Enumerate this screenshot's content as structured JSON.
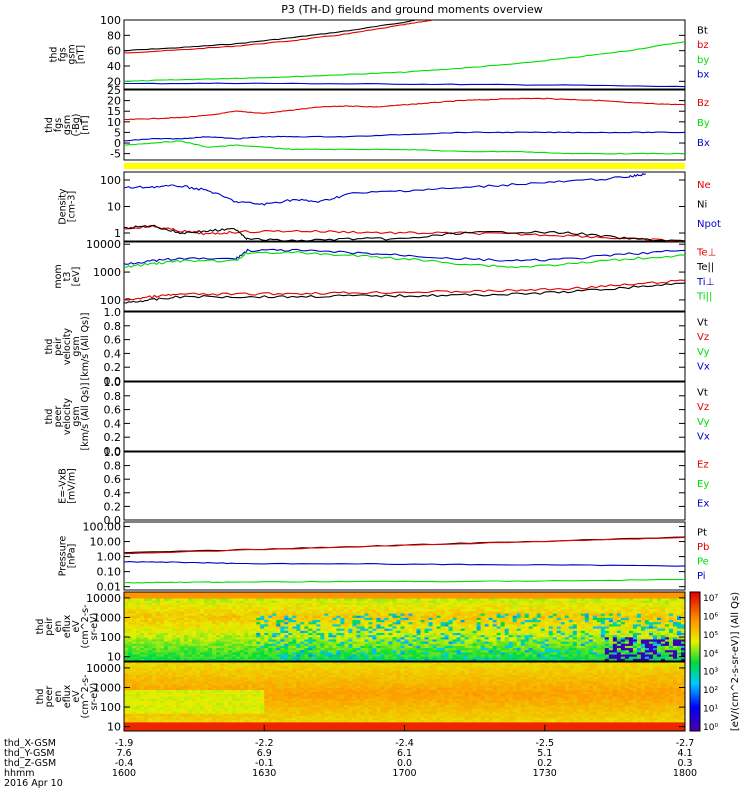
{
  "title": "P3 (TH-D) fields and ground moments overview",
  "colors": {
    "black": "#000000",
    "red": "#e00000",
    "green": "#00dd00",
    "blue": "#0000cc",
    "yellow": "#ffff00"
  },
  "chart_data": [
    {
      "type": "line",
      "ylabel": [
        "thd",
        "fgs",
        "gsm",
        "[nT]"
      ],
      "ylim": [
        10,
        100
      ],
      "ytick_labels": [
        "100",
        "80",
        "60",
        "40",
        "20"
      ],
      "ytick_values": [
        100,
        80,
        60,
        40,
        20
      ],
      "legend": [
        "Bt",
        "bz",
        "by",
        "bx"
      ],
      "legend_colors": [
        "#000000",
        "#e00000",
        "#00dd00",
        "#0000cc"
      ],
      "series": [
        {
          "name": "Bt",
          "color": "#000000",
          "x": [
            0,
            0.1,
            0.2,
            0.3,
            0.4,
            0.5,
            0.52
          ],
          "y": [
            60,
            64,
            69,
            77,
            86,
            97,
            100
          ]
        },
        {
          "name": "bz",
          "color": "#e00000",
          "x": [
            0,
            0.1,
            0.2,
            0.3,
            0.4,
            0.5,
            0.55
          ],
          "y": [
            57,
            61,
            66,
            73,
            82,
            94,
            100
          ]
        },
        {
          "name": "by",
          "color": "#00dd00",
          "x": [
            0,
            0.1,
            0.2,
            0.3,
            0.4,
            0.5,
            0.6,
            0.7,
            0.8,
            0.9,
            1
          ],
          "y": [
            20,
            22,
            24,
            26,
            29,
            32,
            37,
            43,
            51,
            60,
            72
          ]
        },
        {
          "name": "bx",
          "color": "#0000cc",
          "x": [
            0,
            0.2,
            0.4,
            0.6,
            0.8,
            1
          ],
          "y": [
            17,
            17.5,
            16.8,
            16,
            15,
            13
          ]
        }
      ]
    },
    {
      "type": "line",
      "ylabel": [
        "thd",
        "fgs",
        "gsm",
        "(-Bg)",
        "[nT]"
      ],
      "ylim": [
        -8,
        25
      ],
      "ytick_labels": [
        "25",
        "20",
        "15",
        "10",
        "5",
        "0",
        "-5"
      ],
      "ytick_values": [
        25,
        20,
        15,
        10,
        5,
        0,
        -5
      ],
      "legend": [
        "Bz",
        "By",
        "Bx"
      ],
      "legend_colors": [
        "#e00000",
        "#00dd00",
        "#0000cc"
      ],
      "series": [
        {
          "name": "Bz",
          "color": "#e00000",
          "x": [
            0,
            0.05,
            0.1,
            0.15,
            0.2,
            0.25,
            0.3,
            0.35,
            0.4,
            0.45,
            0.5,
            0.55,
            0.6,
            0.65,
            0.7,
            0.75,
            0.8,
            0.85,
            0.9,
            0.95,
            1
          ],
          "y": [
            11,
            11.5,
            12,
            13,
            15,
            14,
            15.5,
            17,
            17.5,
            17,
            18,
            19,
            20,
            20.5,
            21,
            21,
            20.5,
            20,
            19,
            18.5,
            18
          ]
        },
        {
          "name": "By",
          "color": "#00dd00",
          "x": [
            0,
            0.05,
            0.1,
            0.15,
            0.2,
            0.25,
            0.3,
            0.4,
            0.5,
            0.6,
            0.7,
            0.8,
            0.9,
            1
          ],
          "y": [
            -1,
            0,
            1,
            -2,
            -1,
            -2,
            -3,
            -3,
            -3,
            -4,
            -4,
            -5,
            -5,
            -5
          ]
        },
        {
          "name": "Bx",
          "color": "#0000cc",
          "x": [
            0,
            0.05,
            0.1,
            0.15,
            0.2,
            0.25,
            0.3,
            0.4,
            0.5,
            0.6,
            0.7,
            0.8,
            0.9,
            1
          ],
          "y": [
            1,
            2,
            2,
            3,
            2,
            3,
            3,
            3,
            4,
            5,
            5,
            5,
            5,
            5
          ]
        }
      ]
    },
    {
      "type": "line",
      "ylabel": [
        "Density",
        "[cm-3]"
      ],
      "ylim": [
        0.5,
        200
      ],
      "log": true,
      "ytick_labels": [
        "100",
        "10",
        "1"
      ],
      "ytick_values": [
        100,
        10,
        1
      ],
      "legend": [
        "Ne",
        "Ni",
        "Npot"
      ],
      "legend_colors": [
        "#e00000",
        "#000000",
        "#0000cc"
      ],
      "series": [
        {
          "name": "Ne",
          "color": "#e00000",
          "x": [
            0,
            0.05,
            0.1,
            0.15,
            0.2,
            0.3,
            0.4,
            0.5,
            0.6,
            0.7,
            0.8,
            0.9,
            1
          ],
          "y": [
            1.5,
            1.8,
            1.2,
            0.9,
            1.1,
            1.2,
            1.1,
            1.0,
            1.0,
            0.9,
            0.8,
            0.6,
            0.5
          ]
        },
        {
          "name": "Ni",
          "color": "#000000",
          "x": [
            0,
            0.05,
            0.1,
            0.15,
            0.2,
            0.22,
            0.3,
            0.4,
            0.5,
            0.6,
            0.7,
            0.8,
            0.9,
            1
          ],
          "y": [
            1.5,
            1.9,
            1.0,
            1.2,
            1.4,
            0.6,
            0.5,
            0.6,
            0.6,
            1.0,
            1.1,
            1.0,
            0.6,
            0.5
          ]
        },
        {
          "name": "Npot",
          "color": "#0000cc",
          "x": [
            0,
            0.05,
            0.1,
            0.15,
            0.2,
            0.25,
            0.3,
            0.35,
            0.4,
            0.5,
            0.6,
            0.7,
            0.8,
            0.9,
            0.93
          ],
          "y": [
            50,
            55,
            60,
            40,
            15,
            12,
            18,
            15,
            30,
            40,
            50,
            70,
            90,
            130,
            170
          ]
        }
      ]
    },
    {
      "type": "line",
      "ylabel": [
        "mom",
        "t3",
        "[eV]"
      ],
      "ylim": [
        40,
        12000
      ],
      "log": true,
      "ytick_labels": [
        "10000",
        "1000",
        "100"
      ],
      "ytick_values": [
        10000,
        1000,
        100
      ],
      "legend": [
        "Te⊥",
        "Te||",
        "Ti⊥",
        "Ti||"
      ],
      "legend_colors": [
        "#e00000",
        "#000000",
        "#0000cc",
        "#00dd00"
      ],
      "series": [
        {
          "name": "Te⊥",
          "color": "#e00000",
          "x": [
            0,
            0.05,
            0.1,
            0.2,
            0.3,
            0.4,
            0.5,
            0.6,
            0.7,
            0.8,
            0.9,
            1
          ],
          "y": [
            100,
            130,
            160,
            160,
            170,
            180,
            190,
            200,
            220,
            260,
            350,
            500
          ]
        },
        {
          "name": "Te||",
          "color": "#000000",
          "x": [
            0,
            0.05,
            0.1,
            0.2,
            0.3,
            0.4,
            0.5,
            0.6,
            0.7,
            0.8,
            0.9,
            1
          ],
          "y": [
            80,
            100,
            130,
            130,
            130,
            140,
            140,
            150,
            160,
            200,
            280,
            400
          ]
        },
        {
          "name": "Ti⊥",
          "color": "#0000cc",
          "x": [
            0,
            0.05,
            0.1,
            0.2,
            0.22,
            0.3,
            0.4,
            0.5,
            0.6,
            0.7,
            0.8,
            0.9,
            1
          ],
          "y": [
            2000,
            2500,
            3000,
            3000,
            6000,
            6000,
            5000,
            4000,
            3000,
            2500,
            3000,
            4500,
            6000
          ]
        },
        {
          "name": "Ti||",
          "color": "#00dd00",
          "x": [
            0,
            0.05,
            0.1,
            0.2,
            0.22,
            0.3,
            0.4,
            0.5,
            0.6,
            0.7,
            0.8,
            0.9,
            1
          ],
          "y": [
            1500,
            2000,
            2500,
            2500,
            5000,
            5000,
            4000,
            3000,
            2000,
            1500,
            2000,
            3000,
            4000
          ]
        }
      ]
    },
    {
      "type": "line",
      "ylabel": [
        "thd",
        "peir",
        "velocity",
        "gsm",
        "[km/s (All Qs)]"
      ],
      "ylim": [
        0,
        1
      ],
      "ytick_labels": [
        "1.0",
        "0.8",
        "0.6",
        "0.4",
        "0.2",
        "0.0"
      ],
      "ytick_values": [
        1,
        0.8,
        0.6,
        0.4,
        0.2,
        0
      ],
      "legend": [
        "Vt",
        "Vz",
        "Vy",
        "Vx"
      ],
      "legend_colors": [
        "#000000",
        "#e00000",
        "#00dd00",
        "#0000cc"
      ],
      "series": []
    },
    {
      "type": "line",
      "ylabel": [
        "thd",
        "peer",
        "velocity",
        "gsm",
        "[km/s (All Qs)]"
      ],
      "ylim": [
        0,
        1
      ],
      "ytick_labels": [
        "1.0",
        "0.8",
        "0.6",
        "0.4",
        "0.2",
        "0.0"
      ],
      "ytick_values": [
        1,
        0.8,
        0.6,
        0.4,
        0.2,
        0
      ],
      "legend": [
        "Vt",
        "Vz",
        "Vy",
        "Vx"
      ],
      "legend_colors": [
        "#000000",
        "#e00000",
        "#00dd00",
        "#0000cc"
      ],
      "series": []
    },
    {
      "type": "line",
      "ylabel": [
        "E=-VxB",
        "[mV/m]"
      ],
      "ylim": [
        0,
        1
      ],
      "ytick_labels": [
        "1.0",
        "0.8",
        "0.6",
        "0.4",
        "0.2",
        "0.0"
      ],
      "ytick_values": [
        1,
        0.8,
        0.6,
        0.4,
        0.2,
        0
      ],
      "legend": [
        "Ez",
        "Ey",
        "Ex"
      ],
      "legend_colors": [
        "#e00000",
        "#00dd00",
        "#0000cc"
      ],
      "series": []
    },
    {
      "type": "line",
      "ylabel": [
        "Pressure",
        "[nPa]"
      ],
      "ylim": [
        0.006,
        200
      ],
      "log": true,
      "ytick_labels": [
        "100.00",
        "10.00",
        "1.00",
        "0.10",
        "0.01"
      ],
      "ytick_values": [
        100,
        10,
        1,
        0.1,
        0.01
      ],
      "legend": [
        "Pt",
        "Pb",
        "Pe",
        "Pi"
      ],
      "legend_colors": [
        "#000000",
        "#e00000",
        "#00dd00",
        "#0000cc"
      ],
      "series": [
        {
          "name": "Pt",
          "color": "#000000",
          "x": [
            0,
            0.2,
            0.4,
            0.6,
            0.8,
            1
          ],
          "y": [
            1.8,
            2.8,
            4.5,
            7.5,
            12,
            20
          ]
        },
        {
          "name": "Pb",
          "color": "#e00000",
          "x": [
            0,
            0.2,
            0.4,
            0.6,
            0.8,
            1
          ],
          "y": [
            1.6,
            2.6,
            4.3,
            7.2,
            11.5,
            19
          ]
        },
        {
          "name": "Pe",
          "color": "#00dd00",
          "x": [
            0,
            0.1,
            0.2,
            0.4,
            0.6,
            0.8,
            1
          ],
          "y": [
            0.018,
            0.02,
            0.02,
            0.022,
            0.022,
            0.025,
            0.03
          ]
        },
        {
          "name": "Pi",
          "color": "#0000cc",
          "x": [
            0,
            0.1,
            0.2,
            0.4,
            0.6,
            0.8,
            1
          ],
          "y": [
            0.45,
            0.42,
            0.35,
            0.33,
            0.3,
            0.27,
            0.24
          ]
        }
      ]
    },
    {
      "type": "heatmap",
      "ylabel": [
        "thd",
        "peir",
        "en",
        "eflux",
        "eV",
        "(cm^2-s-",
        "sr-eV)"
      ],
      "ylim": [
        6,
        20000
      ],
      "log": true,
      "ytick_labels": [
        "10000",
        "1000",
        "100",
        "10"
      ],
      "ytick_values": [
        10000,
        1000,
        100,
        10
      ]
    },
    {
      "type": "heatmap",
      "ylabel": [
        "thd",
        "peer",
        "en",
        "eflux",
        "eV",
        "(cm^2-s-",
        "sr-eV)"
      ],
      "ylim": [
        6,
        20000
      ],
      "log": true,
      "ytick_labels": [
        "10000",
        "1000",
        "100",
        "10"
      ],
      "ytick_values": [
        10000,
        1000,
        100,
        10
      ]
    }
  ],
  "colorbar": {
    "label": "[eV/(cm^2-s-sr-eV)] (All Qs)",
    "tick_labels": [
      "10⁷",
      "10⁶",
      "10⁵",
      "10⁴",
      "10³",
      "10²",
      "10¹",
      "10⁰"
    ]
  },
  "status_bar": {
    "label": "",
    "color": "#ffff00"
  },
  "xaxis": {
    "rows": [
      {
        "label": "thd_X-GSM",
        "values": [
          "-1.9",
          "-2.2",
          "-2.4",
          "-2.5",
          "-2.7"
        ]
      },
      {
        "label": "thd_Y-GSM",
        "values": [
          "7.6",
          "6.9",
          "6.1",
          "5.1",
          "4.1"
        ]
      },
      {
        "label": "thd_Z-GSM",
        "values": [
          "-0.4",
          "-0.1",
          "0.0",
          "0.2",
          "0.3"
        ]
      },
      {
        "label": "hhmm",
        "values": [
          "1600",
          "1630",
          "1700",
          "1730",
          "1800"
        ]
      }
    ],
    "date": "2016 Apr 10"
  }
}
